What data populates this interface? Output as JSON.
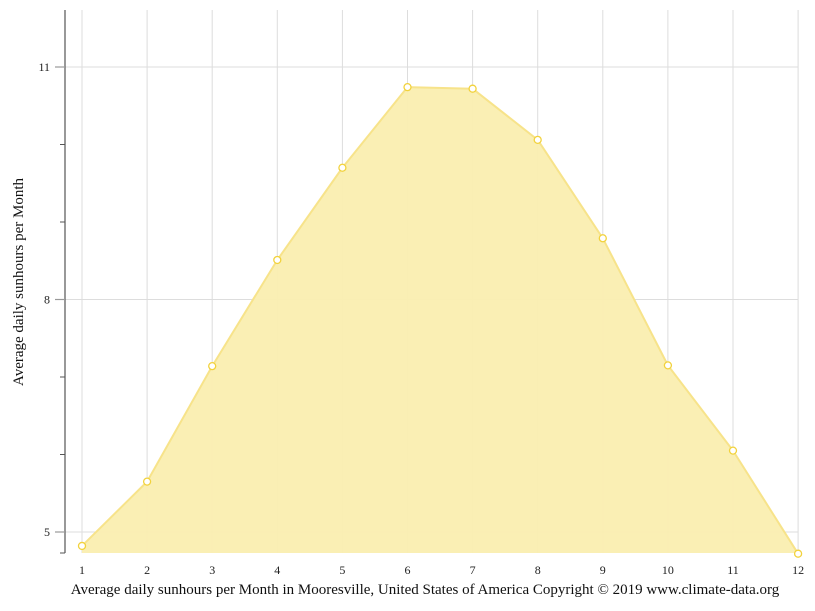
{
  "caption": "Average daily sunhours per Month in Mooresville, United States of America Copyright © 2019 www.climate-data.org",
  "colors": {
    "area_fill": "#faeeb0",
    "line": "#f7e38a",
    "marker_stroke": "#f2d23c",
    "marker_fill": "#ffffff",
    "grid": "#dddddd",
    "axis": "#555555"
  },
  "chart_data": {
    "type": "area",
    "title": "Average daily sunhours per Month in Mooresville, United States of America",
    "subtitle": "Copyright © 2019 www.climate-data.org",
    "xlabel": "",
    "ylabel": "Average daily sunhours per Month",
    "categories": [
      "1",
      "2",
      "3",
      "4",
      "5",
      "6",
      "7",
      "8",
      "9",
      "10",
      "11",
      "12"
    ],
    "series": [
      {
        "name": "Average daily sunhours",
        "values": [
          4.82,
          5.65,
          7.14,
          8.51,
          9.7,
          10.74,
          10.72,
          10.06,
          8.79,
          7.15,
          6.05,
          4.72
        ]
      }
    ],
    "yticks_major": [
      5,
      8,
      11
    ],
    "yticks_minor": [
      6,
      7,
      9,
      10
    ],
    "ylim": [
      4.72,
      11.72
    ],
    "grid": true,
    "legend": "none"
  }
}
